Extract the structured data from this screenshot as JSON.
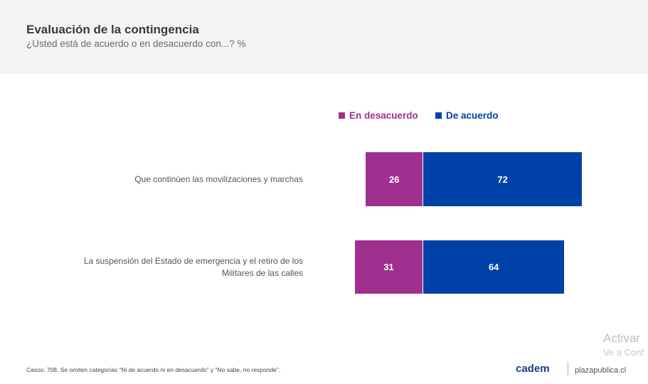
{
  "header": {
    "title": "Evaluación de la contingencia",
    "subtitle": "¿Usted está de acuerdo o en desacuerdo con...? %"
  },
  "chart_data": {
    "type": "bar",
    "orientation": "horizontal",
    "stacked": "diverging",
    "title": "Evaluación de la contingencia",
    "categories": [
      "Que continúen las movilizaciones y marchas",
      "La suspensión del Estado de emergencia y el retiro de los Militares de las calles"
    ],
    "series": [
      {
        "name": "En desacuerdo",
        "color": "#a0308f",
        "values": [
          26,
          31
        ]
      },
      {
        "name": "De acuerdo",
        "color": "#0041a8",
        "values": [
          72,
          64
        ]
      }
    ],
    "legend": "top"
  },
  "footer": {
    "note": "Casos: 708. Se omiten categorías “Ni de acuerdo ni en desacuerdo” y “No sabe, no responde”.",
    "logo": "cadem",
    "source": "plazapublica.cl"
  },
  "watermark": {
    "line1": "Activar",
    "line2": "Ve a Conf"
  }
}
